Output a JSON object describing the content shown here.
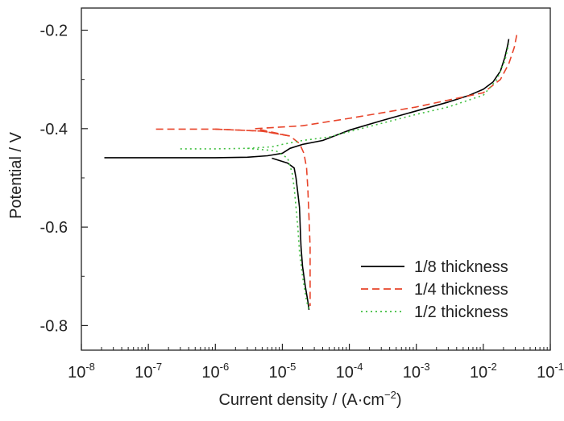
{
  "chart_data": {
    "type": "line",
    "xlabel": "Current density / (A·cm",
    "xlabel_sup": "−2",
    "xlabel_close": ")",
    "ylabel": "Potential / V",
    "x_scale": "log",
    "xlim": [
      1e-08,
      0.1
    ],
    "ylim": [
      -0.85,
      -0.155
    ],
    "x_ticks": [
      {
        "value": 1e-08,
        "base": "10",
        "exp": "-8"
      },
      {
        "value": 1e-07,
        "base": "10",
        "exp": "-7"
      },
      {
        "value": 1e-06,
        "base": "10",
        "exp": "-6"
      },
      {
        "value": 1e-05,
        "base": "10",
        "exp": "-5"
      },
      {
        "value": 0.0001,
        "base": "10",
        "exp": "-4"
      },
      {
        "value": 0.001,
        "base": "10",
        "exp": "-3"
      },
      {
        "value": 0.01,
        "base": "10",
        "exp": "-2"
      },
      {
        "value": 0.1,
        "base": "10",
        "exp": "-1"
      }
    ],
    "y_ticks": [
      {
        "value": -0.2,
        "label": "-0.2"
      },
      {
        "value": -0.4,
        "label": "-0.4"
      },
      {
        "value": -0.6,
        "label": "-0.6"
      },
      {
        "value": -0.8,
        "label": "-0.8"
      }
    ],
    "grid": false,
    "legend_position": "bottom-right",
    "series": [
      {
        "name": "1/8 thickness",
        "color": "#000000",
        "dash": "solid",
        "points": [
          [
            2.2e-08,
            -0.459
          ],
          [
            1e-07,
            -0.459
          ],
          [
            1e-06,
            -0.459
          ],
          [
            3e-06,
            -0.458
          ],
          [
            6e-06,
            -0.455
          ],
          [
            1e-05,
            -0.45
          ],
          [
            1.3e-05,
            -0.44
          ],
          [
            2e-05,
            -0.432
          ],
          [
            4e-05,
            -0.424
          ],
          [
            0.0001,
            -0.403
          ],
          [
            0.0003,
            -0.384
          ],
          [
            0.001,
            -0.364
          ],
          [
            0.003,
            -0.346
          ],
          [
            0.006,
            -0.333
          ],
          [
            0.01,
            -0.32
          ],
          [
            0.014,
            -0.305
          ],
          [
            0.018,
            -0.283
          ],
          [
            0.021,
            -0.255
          ],
          [
            0.023,
            -0.232
          ],
          [
            0.024,
            -0.218
          ]
        ],
        "cathodic_points": [
          [
            7e-06,
            -0.46
          ],
          [
            1.2e-05,
            -0.47
          ],
          [
            1.5e-05,
            -0.48
          ],
          [
            1.6e-05,
            -0.5
          ],
          [
            1.7e-05,
            -0.53
          ],
          [
            1.8e-05,
            -0.56
          ],
          [
            1.85e-05,
            -0.6
          ],
          [
            1.9e-05,
            -0.64
          ],
          [
            2e-05,
            -0.68
          ],
          [
            2.2e-05,
            -0.72
          ],
          [
            2.4e-05,
            -0.75
          ],
          [
            2.5e-05,
            -0.768
          ]
        ]
      },
      {
        "name": "1/4 thickness",
        "color": "#e8442a",
        "dash": "dashed",
        "points": [
          [
            1.3e-07,
            -0.401
          ],
          [
            1e-06,
            -0.401
          ],
          [
            5e-06,
            -0.405
          ],
          [
            1e-05,
            -0.412
          ],
          [
            1.3e-05,
            -0.415
          ],
          [
            4e-06,
            -0.4
          ],
          [
            2e-05,
            -0.394
          ],
          [
            0.0001,
            -0.379
          ],
          [
            0.001,
            -0.356
          ],
          [
            0.003,
            -0.342
          ],
          [
            0.01,
            -0.327
          ],
          [
            0.018,
            -0.3
          ],
          [
            0.024,
            -0.268
          ],
          [
            0.029,
            -0.235
          ],
          [
            0.032,
            -0.205
          ]
        ],
        "cathodic_points": [
          [
            1e-06,
            -0.401
          ],
          [
            5e-06,
            -0.405
          ],
          [
            1.3e-05,
            -0.415
          ],
          [
            1.8e-05,
            -0.43
          ],
          [
            2.1e-05,
            -0.45
          ],
          [
            2.3e-05,
            -0.48
          ],
          [
            2.4e-05,
            -0.52
          ],
          [
            2.5e-05,
            -0.58
          ],
          [
            2.6e-05,
            -0.64
          ],
          [
            2.6e-05,
            -0.7
          ],
          [
            2.6e-05,
            -0.76
          ]
        ]
      },
      {
        "name": "1/2 thickness",
        "color": "#3fbf3f",
        "dash": "dotted",
        "points": [
          [
            3e-07,
            -0.441
          ],
          [
            1e-06,
            -0.441
          ],
          [
            3e-06,
            -0.44
          ],
          [
            7e-06,
            -0.437
          ],
          [
            1e-05,
            -0.432
          ],
          [
            2e-05,
            -0.424
          ],
          [
            5e-05,
            -0.417
          ],
          [
            0.0001,
            -0.406
          ],
          [
            0.001,
            -0.371
          ],
          [
            0.003,
            -0.356
          ],
          [
            0.01,
            -0.332
          ],
          [
            0.016,
            -0.3
          ],
          [
            0.021,
            -0.262
          ],
          [
            0.024,
            -0.228
          ]
        ],
        "cathodic_points": [
          [
            3e-06,
            -0.44
          ],
          [
            8e-06,
            -0.445
          ],
          [
            1.2e-05,
            -0.46
          ],
          [
            1.4e-05,
            -0.49
          ],
          [
            1.5e-05,
            -0.52
          ],
          [
            1.6e-05,
            -0.56
          ],
          [
            1.7e-05,
            -0.6
          ],
          [
            1.8e-05,
            -0.65
          ],
          [
            2e-05,
            -0.7
          ],
          [
            2.3e-05,
            -0.75
          ],
          [
            2.5e-05,
            -0.768
          ]
        ]
      }
    ]
  }
}
